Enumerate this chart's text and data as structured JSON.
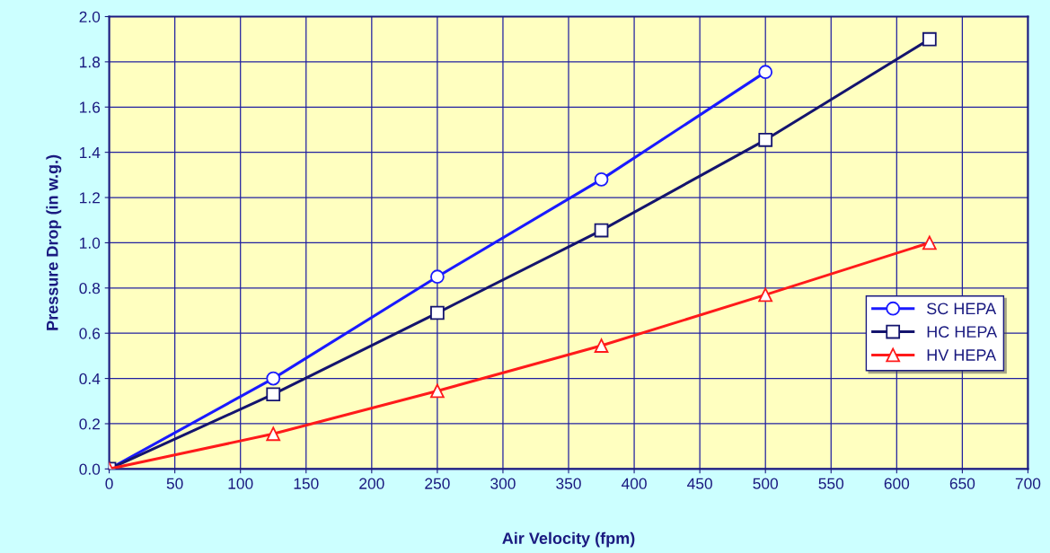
{
  "chart_data": {
    "type": "line",
    "xlabel": "Air Velocity (fpm)",
    "ylabel": "Pressure Drop (in w.g.)",
    "xlim": [
      0,
      700
    ],
    "xticks": [
      0,
      50,
      100,
      150,
      200,
      250,
      300,
      350,
      400,
      450,
      500,
      550,
      600,
      650,
      700
    ],
    "ylim": [
      0,
      2.0
    ],
    "yticks": [
      {
        "value": 0,
        "label": "0.0"
      },
      {
        "value": 0.2,
        "label": "0.2"
      },
      {
        "value": 0.4,
        "label": "0.4"
      },
      {
        "value": 0.6,
        "label": "0.6"
      },
      {
        "value": 0.8,
        "label": "0.8"
      },
      {
        "value": 1.0,
        "label": "1.0"
      },
      {
        "value": 1.2,
        "label": "1.2"
      },
      {
        "value": 1.4,
        "label": "1.4"
      },
      {
        "value": 1.6,
        "label": "1.6"
      },
      {
        "value": 1.8,
        "label": "1.8"
      },
      {
        "value": 2.0,
        "label": "2.0"
      }
    ],
    "grid": true,
    "legend": "right",
    "line_style": "solid",
    "series": [
      {
        "name": "SC HEPA",
        "color": "#1a1aff",
        "marker": "circle",
        "x": [
          0,
          125,
          250,
          375,
          500
        ],
        "values": [
          0,
          0.4,
          0.85,
          1.28,
          1.755
        ]
      },
      {
        "name": "HC HEPA",
        "color": "#14146e",
        "marker": "square",
        "x": [
          0,
          125,
          250,
          375,
          500,
          625
        ],
        "values": [
          0,
          0.33,
          0.69,
          1.055,
          1.455,
          1.9
        ]
      },
      {
        "name": "HV HEPA",
        "color": "#ff1a1a",
        "marker": "triangle",
        "x": [
          0,
          125,
          250,
          375,
          500,
          625
        ],
        "values": [
          0,
          0.155,
          0.345,
          0.545,
          0.77,
          1.0
        ]
      }
    ]
  }
}
